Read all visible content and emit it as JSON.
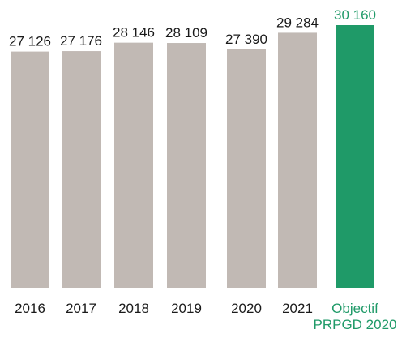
{
  "chart_data": {
    "type": "bar",
    "categories": [
      "2016",
      "2017",
      "2018",
      "2019",
      "2020",
      "2021",
      "Objectif PRPGD 2020"
    ],
    "values": [
      27126,
      27176,
      28146,
      28109,
      27390,
      29284,
      30160
    ],
    "value_labels": [
      "27 126",
      "27 176",
      "28 146",
      "28 109",
      "27 390",
      "29 284",
      "30 160"
    ],
    "category_label_lines": [
      [
        "2016"
      ],
      [
        "2017"
      ],
      [
        "2018"
      ],
      [
        "2019"
      ],
      [
        "2020"
      ],
      [
        "2021"
      ],
      [
        "Objectif",
        "PRPGD 2020"
      ]
    ],
    "highlight_index": 6,
    "title": "",
    "xlabel": "",
    "ylabel": "",
    "grid": false,
    "colors": {
      "bar": "#c1b9b4",
      "highlight": "#1f9a68",
      "text": "#1a1a1a",
      "highlight_text": "#1f9a68"
    }
  }
}
